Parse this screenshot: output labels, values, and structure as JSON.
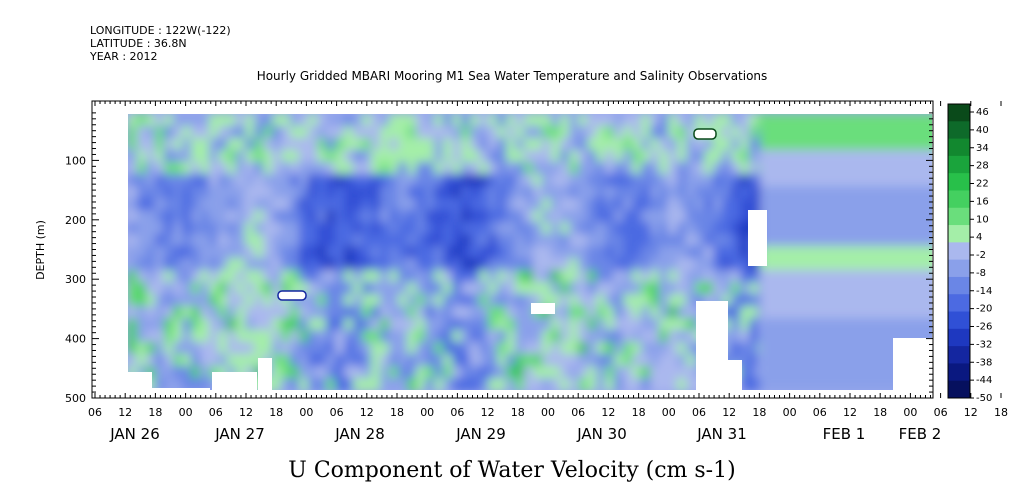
{
  "header": {
    "longitude": "LONGITUDE : 122W(-122)",
    "latitude": "LATITUDE : 36.8N",
    "year": "YEAR : 2012",
    "title": "Hourly Gridded MBARI Mooring M1 Sea Water Temperature and Salinity Observations"
  },
  "chart_data": {
    "type": "heatmap",
    "title": "Hourly Gridded MBARI Mooring M1 Sea Water Temperature and Salinity Observations",
    "variable_label": "U Component of Water Velocity (cm s-1)",
    "ylabel": "DEPTH (m)",
    "y_axis": {
      "ylim": [
        500,
        0
      ],
      "inverted": true,
      "ticks": [
        100,
        200,
        300,
        400,
        500
      ],
      "tick_labels": [
        "100",
        "200",
        "300",
        "400",
        "500"
      ]
    },
    "x_axis": {
      "hour_tick_labels": [
        "06",
        "12",
        "18",
        "00",
        "06",
        "12",
        "18",
        "00",
        "06",
        "12",
        "18",
        "00",
        "06",
        "12",
        "18",
        "00",
        "06",
        "12",
        "18",
        "00",
        "06",
        "12",
        "18",
        "00",
        "06",
        "12",
        "18",
        "00",
        "06",
        "12",
        "18",
        "00",
        "06"
      ],
      "day_labels": [
        "JAN 26",
        "JAN 27",
        "JAN 28",
        "JAN 29",
        "JAN 30",
        "JAN 31",
        "FEB  1",
        "FEB  2"
      ]
    },
    "colorbar": {
      "levels": [
        "46",
        "40",
        "34",
        "28",
        "22",
        "16",
        "10",
        "4",
        "-2",
        "-8",
        "-14",
        "-20",
        "-26",
        "-32",
        "-38",
        "-44",
        "-50"
      ],
      "colors": [
        "#0a4a1a",
        "#0e6a2a",
        "#12882f",
        "#1aa43c",
        "#28c04a",
        "#44d060",
        "#6ade7c",
        "#a4eea8",
        "#aab8ee",
        "#8aa0ea",
        "#6a86e6",
        "#4c6ae2",
        "#3050d6",
        "#1e38c0",
        "#1426a0",
        "#0a1880",
        "#06105e"
      ]
    },
    "data_extent": {
      "start": "2012-01-26 12:00",
      "end": "2012-02-02 00:00"
    },
    "grid": false,
    "legend": "right colorbar"
  }
}
